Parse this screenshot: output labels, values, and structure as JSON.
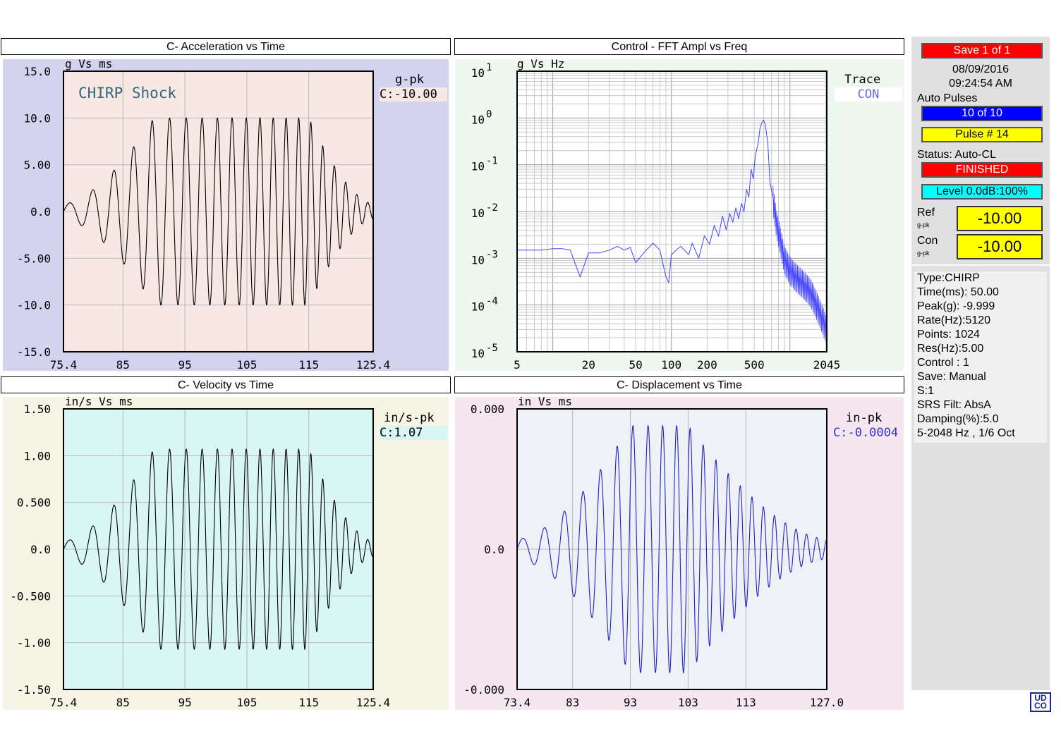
{
  "panels": {
    "acc": {
      "title": "C- Acceleration  vs  Time",
      "units": "g  Vs  ms",
      "peak_label": "g-pk",
      "peak_value": "C:-10.00",
      "annotation": "CHIRP  Shock"
    },
    "fft": {
      "title": "Control - FFT Ampl  vs  Freq",
      "units": "g  Vs  Hz",
      "trace_label": "Trace",
      "trace_value": "CON"
    },
    "vel": {
      "title": "C- Velocity  vs  Time",
      "units": "in/s  Vs  ms",
      "peak_label": "in/s-pk",
      "peak_value": "C:1.07"
    },
    "disp": {
      "title": "C- Displacement  vs  Time",
      "units": "in  Vs  ms",
      "peak_label": "in-pk",
      "peak_value": "C:-0.0004"
    }
  },
  "chart_data": [
    {
      "id": "acc",
      "type": "line",
      "title": "C- Acceleration  vs  Time",
      "xlabel": "",
      "ylabel": "",
      "units": "g  Vs  ms",
      "xlim": [
        75.4,
        125.4
      ],
      "ylim": [
        -15,
        15
      ],
      "xticks": [
        "75.4",
        "85",
        "95",
        "105",
        "115",
        "125.4"
      ],
      "xtick_values": [
        75.4,
        85,
        95,
        105,
        115,
        125.4
      ],
      "yticks": [
        "15.0",
        "10.0",
        "5.00",
        "0.0",
        "-5.00",
        "-10.0",
        "-15.0"
      ],
      "ytick_values": [
        15,
        10,
        5,
        0,
        -5,
        -10,
        -15
      ],
      "signal": {
        "kind": "chirp",
        "start": 75.4,
        "end": 125.4,
        "peak": 10.0,
        "freq_start_per_ms": 0.25,
        "freq_end_per_ms": 0.58,
        "window": [
          75.4,
          90,
          115,
          125.4
        ]
      },
      "series": [
        {
          "values_desc": "chirp burst",
          "color": "#000000"
        }
      ],
      "grid": true
    },
    {
      "id": "fft",
      "type": "line",
      "title": "Control - FFT Ampl  vs  Freq",
      "units": "g  Vs  Hz",
      "xscale": "log",
      "yscale": "log",
      "xlim": [
        5,
        2045
      ],
      "ylim": [
        1e-05,
        10
      ],
      "xticks": [
        "5",
        "20",
        "50",
        "100",
        "200",
        "500",
        "2045"
      ],
      "xtick_values": [
        5,
        20,
        50,
        100,
        200,
        500,
        2045
      ],
      "yticks": [
        "10",
        "10",
        "10",
        "10",
        "10",
        "10",
        "10"
      ],
      "ytick_exps": [
        "1",
        "0",
        "-1",
        "-2",
        "-3",
        "-4",
        "-5"
      ],
      "ytick_values": [
        10,
        1,
        0.1,
        0.01,
        0.001,
        0.0001,
        1e-05
      ],
      "x": [
        5,
        8,
        10,
        12,
        14,
        17,
        20,
        25,
        30,
        35,
        40,
        45,
        50,
        60,
        70,
        80,
        90,
        95,
        100,
        110,
        120,
        140,
        150,
        170,
        190,
        210,
        230,
        250,
        270,
        290,
        310,
        330,
        350,
        370,
        390,
        410,
        430,
        450,
        470,
        490,
        510,
        540,
        560,
        580,
        600,
        620,
        650,
        680,
        720,
        770,
        820,
        900,
        1000,
        1150,
        1300,
        1500,
        1700,
        1900,
        2045
      ],
      "y": [
        0.0015,
        0.0015,
        0.0016,
        0.0016,
        0.0015,
        0.0004,
        0.0013,
        0.0013,
        0.0015,
        0.0018,
        0.0015,
        0.0017,
        0.0008,
        0.0014,
        0.0021,
        0.0015,
        0.0004,
        0.0003,
        0.0012,
        0.0015,
        0.0018,
        0.0012,
        0.0021,
        0.001,
        0.003,
        0.002,
        0.005,
        0.003,
        0.008,
        0.004,
        0.009,
        0.006,
        0.012,
        0.007,
        0.015,
        0.01,
        0.03,
        0.02,
        0.08,
        0.05,
        0.15,
        0.3,
        0.6,
        0.8,
        0.9,
        0.7,
        0.3,
        0.04,
        0.02,
        0.006,
        0.003,
        0.001,
        0.0006,
        0.0004,
        0.0003,
        0.0002,
        0.0001,
        5e-05,
        3e-05
      ],
      "series": [
        {
          "color": "#4444ff"
        }
      ],
      "grid": true
    },
    {
      "id": "vel",
      "type": "line",
      "title": "C- Velocity  vs  Time",
      "units": "in/s  Vs  ms",
      "xlim": [
        75.4,
        125.4
      ],
      "ylim": [
        -1.5,
        1.5
      ],
      "xticks": [
        "75.4",
        "85",
        "95",
        "105",
        "115",
        "125.4"
      ],
      "xtick_values": [
        75.4,
        85,
        95,
        105,
        115,
        125.4
      ],
      "yticks": [
        "1.50",
        "1.00",
        "0.500",
        "0.0",
        "-0.500",
        "-1.00",
        "-1.50"
      ],
      "ytick_values": [
        1.5,
        1.0,
        0.5,
        0,
        -0.5,
        -1.0,
        -1.5
      ],
      "signal": {
        "kind": "chirp",
        "start": 75.4,
        "end": 125.4,
        "peak": 1.07,
        "freq_start_per_ms": 0.25,
        "freq_end_per_ms": 0.58,
        "window": [
          75.4,
          90,
          115,
          125.4
        ]
      },
      "series": [
        {
          "color": "#000000"
        }
      ],
      "grid": true
    },
    {
      "id": "disp",
      "type": "line",
      "title": "C- Displacement  vs  Time",
      "units": "in  Vs  ms",
      "xlim": [
        73.4,
        127.0
      ],
      "ylim": [
        -0.0005,
        0.0005
      ],
      "xticks": [
        "73.4",
        "83",
        "93",
        "103",
        "113",
        "127.0"
      ],
      "xtick_values": [
        73.4,
        83,
        93,
        103,
        113,
        127.0
      ],
      "yticks": [
        "0.000",
        "0.0",
        "-0.000"
      ],
      "ytick_values": [
        0.0005,
        0,
        -0.0005
      ],
      "signal": {
        "kind": "chirp",
        "start": 73.4,
        "end": 127.0,
        "peak": 0.00044,
        "freq_start_per_ms": 0.25,
        "freq_end_per_ms": 0.58,
        "window": [
          73.4,
          93,
          103,
          127.0
        ]
      },
      "series": [
        {
          "color": "#2020cc"
        }
      ],
      "grid": true
    }
  ],
  "sidebar": {
    "save": "Save   1  of   1",
    "date": "08/09/2016",
    "time": "09:24:54 AM",
    "auto_pulses_label": "Auto Pulses",
    "auto_pulses": "10 of 10",
    "pulse": "Pulse #  14",
    "status_label": "Status: Auto-CL",
    "status": "FINISHED",
    "level": "Level 0.0dB:100%",
    "ref_label": "Ref",
    "ref_unit": "g-pk",
    "ref_value": "-10.00",
    "con_label": "Con",
    "con_unit": "g-pk",
    "con_value": "-10.00",
    "info": [
      "Type:CHIRP",
      "Time(ms): 50.00",
      "Peak(g): -9.999",
      "Rate(Hz):5120",
      "Points: 1024",
      "Res(Hz):5.00",
      "Control :  1",
      "Save: Manual",
      "S:1",
      "SRS Filt: AbsA",
      "Damping(%):5.0",
      "5-2048 Hz , 1/6 Oct"
    ]
  },
  "logo": {
    "line1": "UD",
    "line2": "CO"
  },
  "colors": {
    "acc_bg": "#d3d3f0",
    "acc_plot": "#f8e8e4",
    "fft_bg": "#eef8ee",
    "fft_plot": "#ffffff",
    "vel_bg": "#f6f4e4",
    "vel_plot": "#d8f6f4",
    "disp_bg": "#f6e6f0",
    "disp_plot": "#eef1f6",
    "save": "#ff0000",
    "pulses": "#0000ff",
    "pulse": "#ffff00",
    "finished": "#ff0000",
    "level": "#00ffff"
  }
}
